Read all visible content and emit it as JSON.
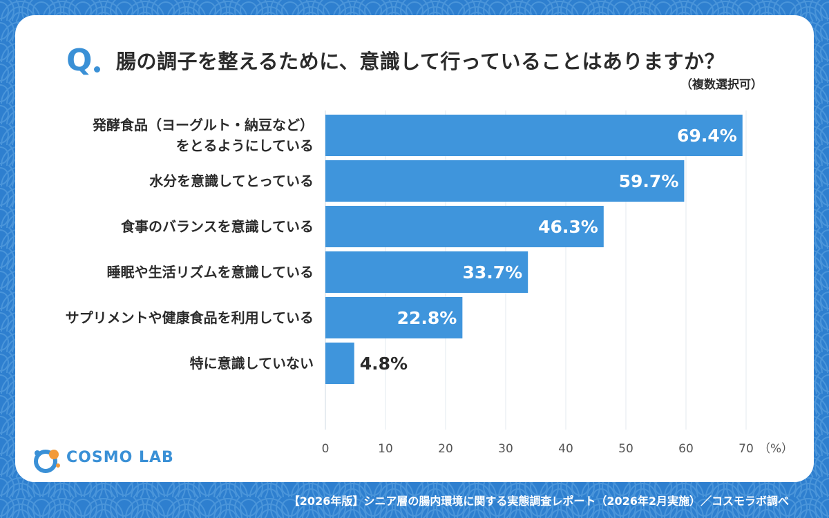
{
  "header": {
    "q_mark": "Q",
    "question": "腸の調子を整えるために、意識して行っていることはありますか？",
    "note": "（複数選択可）"
  },
  "logo": {
    "text": "COSMO LAB"
  },
  "footer": {
    "source": "【2026年版】シニア層の腸内環境に関する実態調査レポート（2026年2月実施）／コスモラボ調べ"
  },
  "colors": {
    "background": "#2e7fcf",
    "bar": "#3f95dc",
    "accent": "#3a90d6",
    "text": "#2b2b2b",
    "logo_orange": "#f29a3a"
  },
  "chart_data": {
    "type": "bar",
    "orientation": "horizontal",
    "categories": [
      "発酵食品（ヨーグルト・納豆など）\nをとるようにしている",
      "水分を意識してとっている",
      "食事のバランスを意識している",
      "睡眠や生活リズムを意識している",
      "サプリメントや健康食品を利用している",
      "特に意識していない"
    ],
    "values": [
      69.4,
      59.7,
      46.3,
      33.7,
      22.8,
      4.8
    ],
    "value_labels": [
      "69.4%",
      "59.7%",
      "46.3%",
      "33.7%",
      "22.8%",
      "4.8%"
    ],
    "x_ticks": [
      "0",
      "10",
      "20",
      "30",
      "40",
      "50",
      "60",
      "70"
    ],
    "x_unit": "（%）",
    "xlim": [
      0,
      70
    ],
    "grid": true
  }
}
